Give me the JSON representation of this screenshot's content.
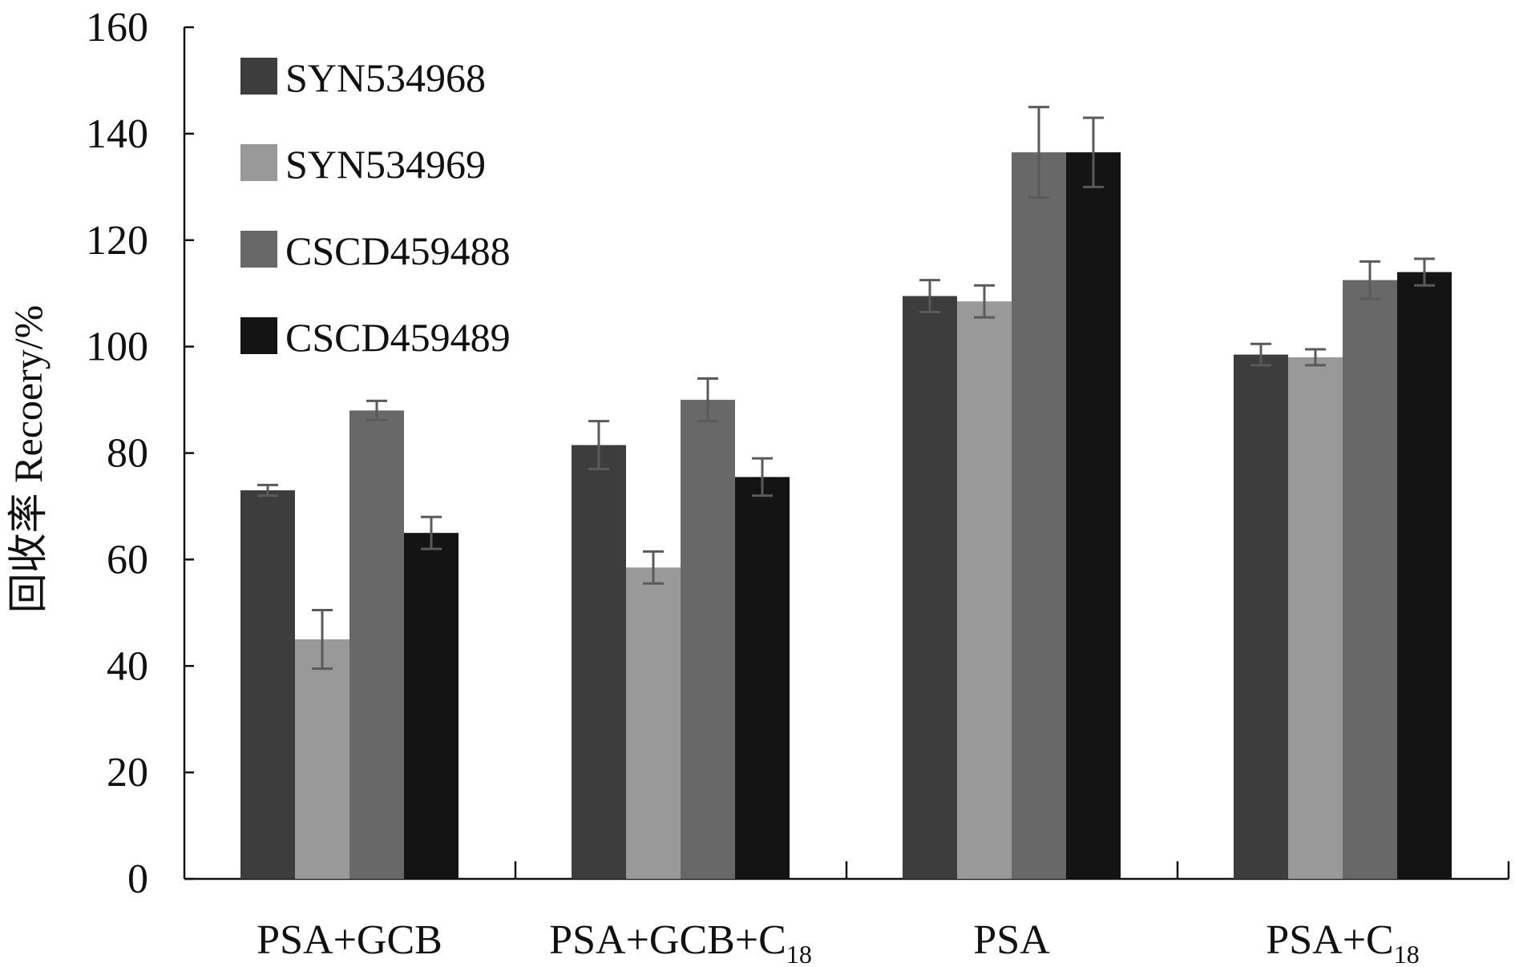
{
  "chart_data": {
    "type": "bar",
    "title": "",
    "xlabel": "",
    "ylabel": "回收率 Recoery/%",
    "ylim": [
      0,
      160
    ],
    "yticks": [
      0,
      20,
      40,
      60,
      80,
      100,
      120,
      140,
      160
    ],
    "grid": false,
    "legend_position": "top-left",
    "categories": [
      {
        "main": "PSA+GCB",
        "sub": ""
      },
      {
        "main": "PSA+GCB+C",
        "sub": "18"
      },
      {
        "main": "PSA",
        "sub": ""
      },
      {
        "main": "PSA+C",
        "sub": "18"
      }
    ],
    "series": [
      {
        "name": "SYN534968",
        "color": "#3d3d3d",
        "values": [
          73,
          81.5,
          109.5,
          98.5
        ],
        "errors": [
          1,
          4.5,
          3,
          2
        ]
      },
      {
        "name": "SYN534969",
        "color": "#999999",
        "values": [
          45,
          58.5,
          108.5,
          98
        ],
        "errors": [
          5.5,
          3,
          3,
          1.5
        ]
      },
      {
        "name": "CSCD459488",
        "color": "#686868",
        "values": [
          88,
          90,
          136.5,
          112.5
        ],
        "errors": [
          1.8,
          4,
          8.5,
          3.5
        ]
      },
      {
        "name": "CSCD459489",
        "color": "#141414",
        "values": [
          65,
          75.5,
          136.5,
          114
        ],
        "errors": [
          3,
          3.5,
          6.5,
          2.5
        ]
      }
    ],
    "error_bar_color": "#5a5a5a"
  }
}
